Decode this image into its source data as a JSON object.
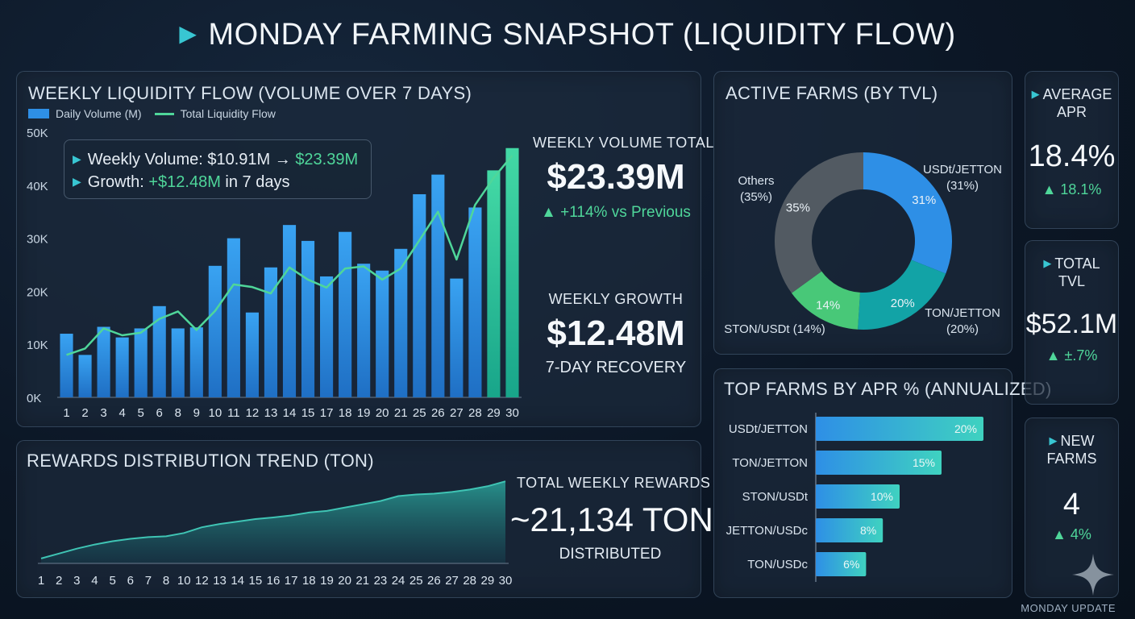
{
  "header": {
    "title": "MONDAY FARMING SNAPSHOT (LIQUIDITY FLOW)"
  },
  "liquidity": {
    "title": "WEEKLY LIQUIDITY FLOW (VOLUME OVER 7 DAYS)",
    "legend_bar": "Daily Volume (M)",
    "legend_line": "Total Liquidity Flow",
    "callout": {
      "line1_prefix": "Weekly Volume: $10.91M → ",
      "line1_value": "$23.39M",
      "line2_prefix": "Growth: ",
      "line2_value": "+$12.48M",
      "line2_suffix": " in 7 days"
    },
    "stat1": {
      "label": "WEEKLY VOLUME TOTAL",
      "value": "$23.39M",
      "change": "▲ +114% vs Previous"
    },
    "stat2": {
      "label": "WEEKLY GROWTH",
      "value": "$12.48M",
      "sub": "7-DAY RECOVERY"
    }
  },
  "rewards": {
    "title": "REWARDS DISTRIBUTION TREND (TON)",
    "stat_label": "TOTAL WEEKLY REWARDS",
    "stat_value": "~21,134 TON",
    "stat_sub": "DISTRIBUTED"
  },
  "active_farms": {
    "title": "ACTIVE FARMS (BY TVL)"
  },
  "top_farms": {
    "title": "TOP FARMS BY APR % (ANNUALIZED)"
  },
  "sidebar": {
    "avg_apr": {
      "label_1": "AVERAGE",
      "label_2": "APR",
      "value": "18.4%",
      "change": "▲ 18.1%"
    },
    "total_tvl": {
      "label_1": "TOTAL",
      "label_2": "TVL",
      "value": "$52.1M",
      "change": "▲ ±.7%"
    },
    "new_farms": {
      "label_1": "NEW",
      "label_2": "FARMS",
      "value": "4",
      "change": "▲ 4%"
    }
  },
  "footer": {
    "text": "MONDAY UPDATE"
  },
  "colors": {
    "accent": "#38c6d2",
    "bar": "#2e8fe6",
    "line": "#4fd69a",
    "up": "#4fd69a",
    "down": "#e8554d"
  },
  "chart_data": [
    {
      "type": "bar",
      "title": "WEEKLY LIQUIDITY FLOW (VOLUME OVER 7 DAYS)",
      "categories": [
        "1",
        "2",
        "3",
        "4",
        "5",
        "6",
        "8",
        "9",
        "10",
        "11",
        "12",
        "13",
        "14",
        "15",
        "17",
        "18",
        "19",
        "20",
        "21",
        "25",
        "26",
        "27",
        "28",
        "29",
        "30"
      ],
      "series": [
        {
          "name": "Daily Volume (M)",
          "type": "bar",
          "values": [
            12,
            8,
            13.3,
            11.3,
            13,
            17.2,
            13,
            13.2,
            24.8,
            30,
            16,
            24.5,
            32.5,
            29.5,
            22.8,
            31.2,
            25.2,
            23.9,
            28,
            38.3,
            42,
            22.4,
            35.8,
            42.8,
            47
          ]
        },
        {
          "name": "Total Liquidity Flow",
          "type": "line",
          "values": [
            8,
            9.2,
            13,
            11.7,
            12.2,
            14.8,
            16.2,
            12.7,
            16.3,
            21.3,
            20.8,
            19.6,
            24.5,
            22.2,
            20.7,
            24.3,
            24.7,
            22.2,
            24.3,
            29.6,
            35,
            26,
            36.3,
            41.4,
            45.6
          ]
        }
      ],
      "yticks": [
        "0K",
        "10K",
        "20K",
        "30K",
        "40K",
        "50K"
      ],
      "ylim": [
        0,
        50
      ]
    },
    {
      "type": "area",
      "title": "REWARDS DISTRIBUTION TREND (TON)",
      "categories": [
        "1",
        "2",
        "3",
        "4",
        "5",
        "6",
        "7",
        "8",
        "10",
        "12",
        "13",
        "14",
        "15",
        "16",
        "17",
        "18",
        "19",
        "20",
        "21",
        "23",
        "24",
        "25",
        "26",
        "27",
        "28",
        "29",
        "30"
      ],
      "values": [
        3,
        6,
        9,
        11.5,
        13.5,
        15,
        16,
        16.5,
        18.5,
        22,
        24,
        25.5,
        27,
        28,
        29.2,
        31,
        32,
        34,
        36,
        38,
        41,
        42,
        42.5,
        43.5,
        45,
        47,
        50
      ],
      "ylim": [
        0,
        55
      ]
    },
    {
      "type": "pie",
      "title": "ACTIVE FARMS (BY TVL)",
      "slices": [
        {
          "label": "USDt/JETTON",
          "value": 31,
          "pct_label": "31%",
          "outer_label": "(31%)",
          "color": "#2e8fe6"
        },
        {
          "label": "TON/JETTON",
          "value": 20,
          "pct_label": "20%",
          "outer_label": "(20%)",
          "color": "#12a3a6"
        },
        {
          "label": "STON/USDt",
          "value": 14,
          "pct_label": "14%",
          "outer_label": "(14%)",
          "color": "#48c878"
        },
        {
          "label": "Others",
          "value": 35,
          "pct_label": "35%",
          "outer_label": "(35%)",
          "color": "#525a62"
        }
      ]
    },
    {
      "type": "bar",
      "orientation": "horizontal",
      "title": "TOP FARMS BY APR % (ANNUALIZED)",
      "categories": [
        "USDt/JETTON",
        "TON/JETTON",
        "STON/USDt",
        "JETTON/USDc",
        "TON/USDc"
      ],
      "values": [
        20,
        15,
        10,
        8,
        6
      ],
      "value_labels": [
        "20%",
        "15%",
        "10%",
        "8%",
        "6%"
      ]
    }
  ]
}
